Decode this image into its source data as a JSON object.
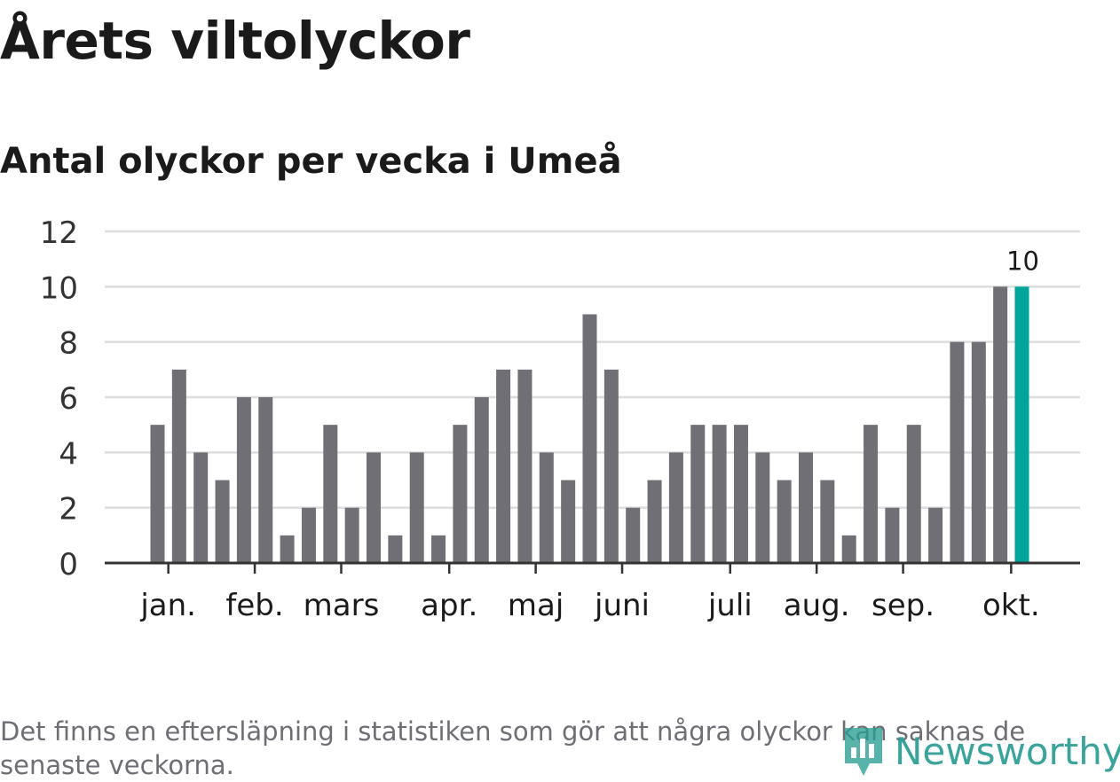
{
  "header": {
    "title": "Årets viltolyckor",
    "subtitle": "Antal olyckor per vecka i Umeå"
  },
  "footnote": "Det finns en eftersläpning i statistiken som gör att några olyckor kan saknas de senaste veckorna.",
  "logo": {
    "text": "Newsworthy",
    "icon": "bar-chart-pin-icon"
  },
  "colors": {
    "bar": "#706f75",
    "highlight": "#00a69c",
    "grid": "#dddddd",
    "axis": "#333333",
    "text": "#1a1a1a",
    "logo": "#2a9d94"
  },
  "chart_data": {
    "type": "bar",
    "title": "Antal olyckor per vecka i Umeå",
    "xlabel": "",
    "ylabel": "",
    "ylim": [
      0,
      12
    ],
    "yticks": [
      "0",
      "2",
      "4",
      "6",
      "8",
      "10",
      "12"
    ],
    "grid": true,
    "values": [
      5,
      7,
      4,
      3,
      6,
      6,
      1,
      2,
      5,
      2,
      4,
      1,
      4,
      1,
      5,
      6,
      7,
      7,
      4,
      3,
      9,
      7,
      2,
      3,
      4,
      5,
      5,
      5,
      4,
      3,
      4,
      3,
      1,
      5,
      2,
      5,
      2,
      8,
      8,
      10,
      10
    ],
    "highlight_index": 40,
    "highlight_label": "10",
    "month_labels": [
      {
        "label": "jan.",
        "bar_index": 0.5
      },
      {
        "label": "feb.",
        "bar_index": 4.5
      },
      {
        "label": "mars",
        "bar_index": 8.5
      },
      {
        "label": "apr.",
        "bar_index": 13.5
      },
      {
        "label": "maj",
        "bar_index": 17.5
      },
      {
        "label": "juni",
        "bar_index": 21.5
      },
      {
        "label": "juli",
        "bar_index": 26.5
      },
      {
        "label": "aug.",
        "bar_index": 30.5
      },
      {
        "label": "sep.",
        "bar_index": 34.5
      },
      {
        "label": "okt.",
        "bar_index": 39.5
      }
    ]
  }
}
